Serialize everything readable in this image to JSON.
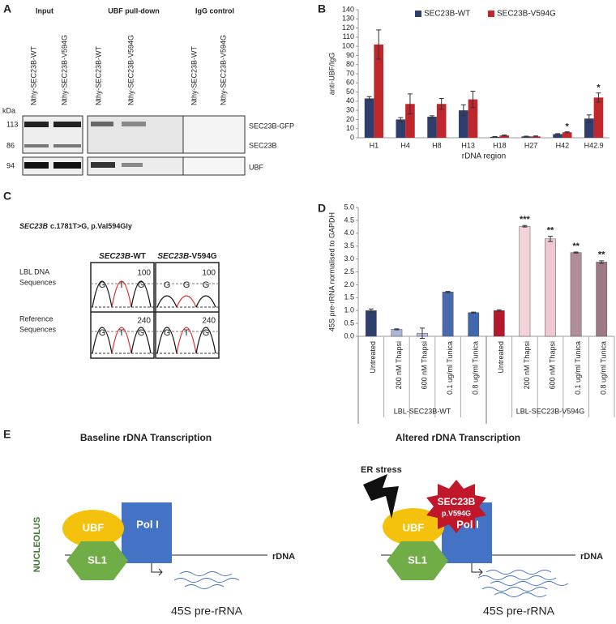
{
  "panels": {
    "a": "A",
    "b": "B",
    "c": "C",
    "d": "D",
    "e": "E"
  },
  "blot": {
    "headers": [
      "Input",
      "UBF pull-down",
      "IgG control"
    ],
    "lanes": [
      "Nthy-SEC23B-WT",
      "Nthy-SEC23B-V594G",
      "Nthy-SEC23B-WT",
      "Nthy-SEC23B-V594G",
      "Nthy-SEC23B-WT",
      "Nthy-SEC23B-V594G"
    ],
    "kda": "kDa",
    "markers": [
      "113",
      "86",
      "94"
    ],
    "bands": [
      "SEC23B-GFP",
      "SEC23B",
      "UBF"
    ]
  },
  "sequence": {
    "gene": "SEC23B",
    "mutation": "c.1781T>G, p.Val594Gly",
    "columns": [
      {
        "gene": "SEC23B",
        "suffix": "-WT"
      },
      {
        "gene": "SEC23B",
        "suffix": "-V594G"
      }
    ],
    "rows": [
      [
        "LBL DNA",
        "Sequences"
      ],
      [
        "Reference",
        "Sequences"
      ]
    ],
    "scales": [
      "100",
      "240"
    ],
    "bases": [
      [
        [
          "G",
          "T",
          "G"
        ],
        [
          "G",
          "G",
          "G"
        ]
      ],
      [
        [
          "G",
          "T",
          "G"
        ],
        [
          "G",
          "T",
          "G"
        ]
      ]
    ]
  },
  "schematic": {
    "compartment": "NUCLEOLUS",
    "left": {
      "title": "Baseline rDNA Transcription",
      "ubf": "UBF",
      "sl1": "SL1",
      "pol": "Pol I",
      "dna": "rDNA",
      "product": "45S pre-rRNA"
    },
    "right": {
      "title": "Altered rDNA Transcription",
      "stress": "ER stress",
      "mutant": "SEC23B",
      "variant": "p.V594G",
      "ubf": "UBF",
      "sl1": "SL1",
      "pol": "Pol I",
      "dna": "rDNA",
      "product": "45S pre-rRNA"
    }
  },
  "chart_data": [
    {
      "type": "bar",
      "y_label": "anti-UBF/IgG",
      "x_label": "rDNA region",
      "categories": [
        "H1",
        "H4",
        "H8",
        "H13",
        "H18",
        "H27",
        "H42",
        "H42.9"
      ],
      "series": [
        {
          "name": "SEC23B-WT",
          "color": "#2e3f6e",
          "values": [
            43,
            20,
            23,
            30,
            1,
            1.5,
            4,
            21
          ],
          "errors": [
            2,
            2,
            1,
            6,
            0.3,
            0.3,
            0.5,
            4
          ]
        },
        {
          "name": "SEC23B-V594G",
          "color": "#c0272d",
          "values": [
            102,
            37,
            37,
            42,
            2.5,
            1.5,
            6,
            44
          ],
          "errors": [
            16,
            11,
            6,
            9,
            0.5,
            0.5,
            0.5,
            5
          ],
          "significance": [
            null,
            null,
            null,
            null,
            null,
            null,
            "*",
            "*"
          ]
        }
      ],
      "ylim": [
        0,
        140
      ],
      "yticks": [
        0,
        10,
        20,
        30,
        40,
        50,
        60,
        70,
        80,
        90,
        100,
        110,
        120,
        130,
        140
      ],
      "grid": false,
      "legend": "top"
    },
    {
      "type": "bar",
      "y_label": "45S pre-rRNA normalised to GAPDH",
      "categories": [
        "Untreated",
        "200 nM Thapsi",
        "600 nM Thapsi",
        "0.1 ug/ml Tunica",
        "0.8 ug/ml Tunica",
        "Untreated",
        "200 nM Thapsi",
        "600 nM Thapsi",
        "0.1 ug/ml Tunica",
        "0.8 ug/ml Tunica"
      ],
      "groups": [
        "LBL-SEC23B-WT",
        "LBL-SEC23B-V594G"
      ],
      "values": [
        1.0,
        0.27,
        0.12,
        1.72,
        0.92,
        1.0,
        4.27,
        3.78,
        3.25,
        2.88
      ],
      "errors": [
        0.06,
        0.02,
        0.2,
        0.02,
        0.02,
        0.03,
        0.03,
        0.1,
        0.02,
        0.05
      ],
      "colors": [
        "#2e3f6e",
        "#a9b6d8",
        "#b4c0e0",
        "#4a6aae",
        "#4267ad",
        "#b5182b",
        "#f3d3d8",
        "#f0c8cf",
        "#b08d99",
        "#9b7a86"
      ],
      "significance": [
        null,
        null,
        null,
        null,
        null,
        null,
        "***",
        "**",
        "**",
        "**"
      ],
      "ylim": [
        0,
        5
      ],
      "yticks": [
        {
          "value": 0,
          "label": "0.0"
        },
        0.5,
        {
          "value": 1,
          "label": "1.0"
        },
        1.5,
        {
          "value": 2,
          "label": "2.0"
        },
        2.5,
        {
          "value": 3,
          "label": "3.0"
        },
        3.5,
        {
          "value": 4,
          "label": "4.0"
        },
        4.5,
        {
          "value": 5,
          "label": "5.0"
        }
      ],
      "grid": false
    }
  ]
}
